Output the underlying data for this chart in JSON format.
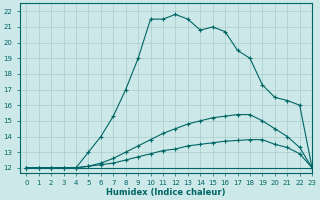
{
  "xlabel": "Humidex (Indice chaleur)",
  "xlim": [
    -0.5,
    23
  ],
  "ylim": [
    11.7,
    22.5
  ],
  "xticks": [
    0,
    1,
    2,
    3,
    4,
    5,
    6,
    7,
    8,
    9,
    10,
    11,
    12,
    13,
    14,
    15,
    16,
    17,
    18,
    19,
    20,
    21,
    22,
    23
  ],
  "yticks": [
    12,
    13,
    14,
    15,
    16,
    17,
    18,
    19,
    20,
    21,
    22
  ],
  "bg_color": "#cce8e8",
  "grid_color": "#aacccc",
  "line_color": "#006666",
  "lines": [
    {
      "x": [
        0,
        1,
        2,
        3,
        4,
        5,
        6,
        7,
        8,
        9,
        10,
        11,
        12,
        13,
        14,
        15,
        16,
        17,
        18,
        19,
        20,
        21,
        22,
        23
      ],
      "y": [
        12,
        12,
        12,
        12,
        12,
        12,
        12,
        12,
        12,
        12,
        12,
        12,
        12,
        12,
        12,
        12,
        12,
        12,
        12,
        12,
        12,
        12,
        12,
        12
      ],
      "marker": false
    },
    {
      "x": [
        0,
        1,
        2,
        3,
        4,
        5,
        6,
        7,
        8,
        9,
        10,
        11,
        12,
        13,
        14,
        15,
        16,
        17,
        18,
        19,
        20,
        21,
        22,
        23
      ],
      "y": [
        12,
        12,
        12,
        12,
        12,
        12.1,
        12.2,
        12.3,
        12.5,
        12.7,
        12.9,
        13.1,
        13.2,
        13.4,
        13.5,
        13.6,
        13.7,
        13.75,
        13.8,
        13.8,
        13.5,
        13.3,
        12.9,
        12
      ],
      "marker": true
    },
    {
      "x": [
        0,
        1,
        2,
        3,
        4,
        5,
        6,
        7,
        8,
        9,
        10,
        11,
        12,
        13,
        14,
        15,
        16,
        17,
        18,
        19,
        20,
        21,
        22,
        23
      ],
      "y": [
        12,
        12,
        12,
        12,
        12,
        12.1,
        12.3,
        12.6,
        13.0,
        13.4,
        13.8,
        14.2,
        14.5,
        14.8,
        15.0,
        15.2,
        15.3,
        15.4,
        15.4,
        15.0,
        14.5,
        14.0,
        13.3,
        12
      ],
      "marker": true
    },
    {
      "x": [
        0,
        1,
        2,
        3,
        4,
        5,
        6,
        7,
        8,
        9,
        10,
        11,
        12,
        13,
        14,
        15,
        16,
        17,
        18,
        19,
        20,
        21,
        22,
        23
      ],
      "y": [
        12,
        12,
        12,
        12,
        12,
        13.0,
        14.0,
        15.3,
        17.0,
        19.0,
        21.5,
        21.5,
        21.8,
        21.5,
        20.8,
        21.0,
        20.7,
        19.5,
        19.0,
        17.3,
        16.5,
        16.3,
        16.0,
        12
      ],
      "marker": true
    }
  ]
}
